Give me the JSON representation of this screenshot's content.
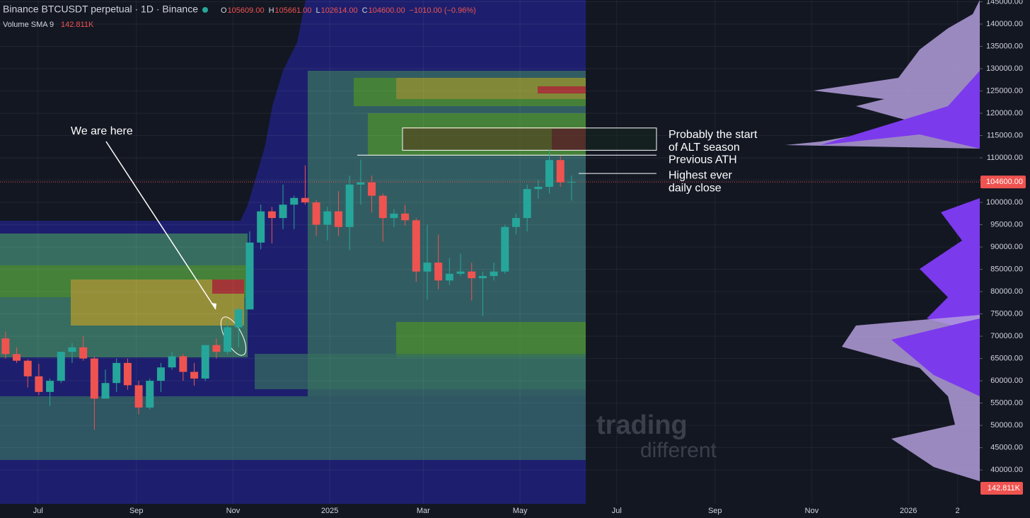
{
  "chart_data": {
    "type": "candlestick",
    "title": "Binance BTCUSDT perpetual · 1D · Binance",
    "ohlc_readout": [
      {
        "label": "O",
        "value": "105609.00"
      },
      {
        "label": "H",
        "value": "105661.00"
      },
      {
        "label": "L",
        "value": "102614.00"
      },
      {
        "label": "C",
        "value": "104600.00"
      }
    ],
    "change": "−1010.00 (−0.96%)",
    "indicator": {
      "name": "Volume SMA 9",
      "value": "142.811K"
    },
    "x": [
      0,
      7,
      14,
      21,
      28,
      35,
      42,
      49,
      56,
      63,
      70,
      77,
      84,
      91,
      98,
      105,
      112,
      119,
      126,
      133,
      140,
      147,
      154,
      161,
      168,
      175,
      182,
      189,
      196,
      203,
      210,
      217,
      224,
      231,
      238,
      245,
      252,
      259,
      266,
      273,
      280,
      287,
      294,
      301,
      308,
      315,
      322,
      329,
      336,
      343,
      350,
      357
    ],
    "open": [
      69500,
      66000,
      64500,
      61000,
      57500,
      60000,
      66500,
      67500,
      65000,
      56000,
      59500,
      64000,
      59000,
      54000,
      60000,
      63000,
      65500,
      62000,
      60500,
      68000,
      66500,
      72000,
      76000,
      91000,
      98000,
      96500,
      99500,
      101000,
      100000,
      95000,
      98000,
      94500,
      104000,
      104500,
      101500,
      96500,
      97500,
      96000,
      84500,
      86500,
      82500,
      84000,
      84500,
      83000,
      83500,
      84500,
      94500,
      96500,
      103000,
      103500,
      109500,
      104500
    ],
    "high": [
      71000,
      67500,
      64800,
      63800,
      60500,
      66500,
      68500,
      70000,
      65500,
      62500,
      65000,
      65000,
      60000,
      60500,
      64000,
      66500,
      66000,
      64000,
      68000,
      69500,
      73600,
      76500,
      93500,
      99500,
      99000,
      104000,
      101500,
      108300,
      100500,
      99000,
      102500,
      106000,
      109600,
      106000,
      102000,
      98500,
      99500,
      96500,
      95000,
      92800,
      87500,
      88500,
      86500,
      84500,
      86500,
      95000,
      97500,
      104000,
      105000,
      111900,
      110500,
      106000
    ],
    "low": [
      65000,
      64000,
      58500,
      56800,
      54300,
      59500,
      64000,
      64500,
      49000,
      56000,
      57500,
      58000,
      52500,
      53500,
      57500,
      62500,
      60000,
      58900,
      60000,
      65000,
      66000,
      67500,
      76000,
      89500,
      90800,
      94000,
      94000,
      99500,
      92500,
      91500,
      92500,
      89300,
      99500,
      97800,
      91200,
      94500,
      94800,
      82200,
      78200,
      80500,
      81500,
      83500,
      78000,
      74500,
      82500,
      84000,
      92800,
      93500,
      100800,
      102000,
      103500,
      100400
    ],
    "close": [
      66000,
      64500,
      61000,
      57500,
      60000,
      66500,
      67500,
      65000,
      56000,
      59500,
      64000,
      59000,
      54000,
      60000,
      63000,
      65500,
      62000,
      60500,
      68000,
      66500,
      72000,
      76000,
      91000,
      98000,
      96500,
      99500,
      101000,
      100000,
      95000,
      98000,
      94500,
      104000,
      104500,
      101500,
      96500,
      97500,
      96000,
      84500,
      86500,
      82500,
      84000,
      84500,
      83000,
      83500,
      84500,
      94500,
      96500,
      103000,
      103500,
      109500,
      104500,
      104600
    ],
    "up_color": "#26a69a",
    "down_color": "#ef5350",
    "xlim": [
      0,
      618
    ],
    "xticks": [
      {
        "value": 24,
        "label": "Jul"
      },
      {
        "value": 86,
        "label": "Sep"
      },
      {
        "value": 147,
        "label": "Nov"
      },
      {
        "value": 208,
        "label": "2025"
      },
      {
        "value": 267,
        "label": "Mar"
      },
      {
        "value": 328,
        "label": "May"
      },
      {
        "value": 389,
        "label": "Jul"
      },
      {
        "value": 451,
        "label": "Sep"
      },
      {
        "value": 512,
        "label": "Nov"
      },
      {
        "value": 573,
        "label": "2026"
      },
      {
        "value": 604,
        "label": "2"
      }
    ],
    "ylim": [
      32400,
      145400
    ],
    "yticks": [
      {
        "value": 40000,
        "label": "40000.00"
      },
      {
        "value": 45000,
        "label": "45000.00"
      },
      {
        "value": 50000,
        "label": "50000.00"
      },
      {
        "value": 55000,
        "label": "55000.00"
      },
      {
        "value": 60000,
        "label": "60000.00"
      },
      {
        "value": 65000,
        "label": "65000.00"
      },
      {
        "value": 70000,
        "label": "70000.00"
      },
      {
        "value": 75000,
        "label": "75000.00"
      },
      {
        "value": 80000,
        "label": "80000.00"
      },
      {
        "value": 85000,
        "label": "85000.00"
      },
      {
        "value": 90000,
        "label": "90000.00"
      },
      {
        "value": 95000,
        "label": "95000.00"
      },
      {
        "value": 100000,
        "label": "100000.00"
      },
      {
        "value": 105000,
        "label": "105000.00"
      },
      {
        "value": 110000,
        "label": "110000.00"
      },
      {
        "value": 115000,
        "label": "115000.00"
      },
      {
        "value": 120000,
        "label": "120000.00"
      },
      {
        "value": 125000,
        "label": "125000.00"
      },
      {
        "value": 130000,
        "label": "130000.00"
      },
      {
        "value": 135000,
        "label": "135000.00"
      },
      {
        "value": 140000,
        "label": "140000.00"
      },
      {
        "value": 145000,
        "label": "145000.00"
      }
    ],
    "grid": true,
    "last_price": {
      "value": 104600,
      "label": "104600.00"
    },
    "annotations": {
      "here": "We are here",
      "alt_season": {
        "lines": [
          "Probably the start",
          "of ALT season"
        ],
        "range": [
          111700,
          116700
        ]
      },
      "previous_ath": {
        "text": "Previous ATH",
        "level": 110600
      },
      "highest_close": {
        "lines": [
          "Highest ever",
          "daily close"
        ],
        "level": 106500
      }
    },
    "watermark": [
      "trading",
      "different"
    ]
  }
}
